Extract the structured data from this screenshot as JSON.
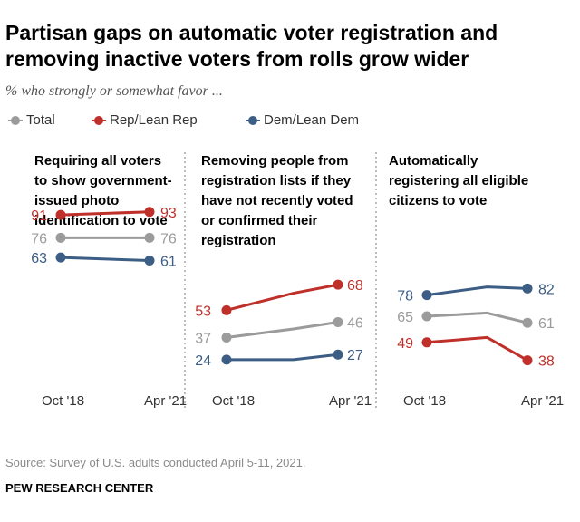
{
  "header": {
    "title": "Partisan gaps on automatic voter registration and removing inactive voters from rolls grow wider",
    "subtitle": "% who strongly or somewhat favor ..."
  },
  "legend": [
    {
      "label": "Total",
      "color": "#9b9b9b"
    },
    {
      "label": "Rep/Lean Rep",
      "color": "#c0302b"
    },
    {
      "label": "Dem/Lean Dem",
      "color": "#3c5d84"
    }
  ],
  "colors": {
    "total": "#9b9b9b",
    "rep": "#c0302b",
    "dem": "#3c5d84",
    "divider": "#7a7a7a",
    "axis_label": "#333333"
  },
  "chart_data": [
    {
      "type": "line",
      "title": "Requiring all voters to show government-issued photo identification to vote",
      "title_lines": [
        "Requiring all voters",
        "to show government-",
        "issued photo",
        "identification to vote"
      ],
      "x": [
        "Oct '18",
        "Apr '21"
      ],
      "ylim": [
        0,
        100
      ],
      "series": [
        {
          "name": "Rep/Lean Rep",
          "key": "rep",
          "values": [
            91,
            93
          ],
          "labels": [
            "91",
            "93"
          ],
          "mid": null
        },
        {
          "name": "Total",
          "key": "total",
          "values": [
            76,
            76
          ],
          "labels": [
            "76",
            "76"
          ],
          "mid": null
        },
        {
          "name": "Dem/Lean Dem",
          "key": "dem",
          "values": [
            63,
            61
          ],
          "labels": [
            "63",
            "61"
          ],
          "mid": null
        }
      ]
    },
    {
      "type": "line",
      "title": "Removing people from registration lists if they have not recently voted or confirmed their registration",
      "title_lines": [
        "Removing people from",
        "registration lists if they",
        "have not recently voted",
        "or confirmed their",
        "registration"
      ],
      "x": [
        "Oct '18",
        "Apr '21"
      ],
      "ylim": [
        0,
        100
      ],
      "series": [
        {
          "name": "Rep/Lean Rep",
          "key": "rep",
          "values": [
            53,
            68
          ],
          "labels": [
            "53",
            "68"
          ],
          "mid": 63
        },
        {
          "name": "Total",
          "key": "total",
          "values": [
            37,
            46
          ],
          "labels": [
            "37",
            "46"
          ],
          "mid": 42
        },
        {
          "name": "Dem/Lean Dem",
          "key": "dem",
          "values": [
            24,
            27
          ],
          "labels": [
            "24",
            "27"
          ],
          "mid": 24
        }
      ]
    },
    {
      "type": "line",
      "title": "Automatically registering all eligible citizens to vote",
      "title_lines": [
        "Automatically",
        "registering all eligible",
        "citizens to vote"
      ],
      "x": [
        "Oct '18",
        "Apr '21"
      ],
      "ylim": [
        0,
        100
      ],
      "series": [
        {
          "name": "Dem/Lean Dem",
          "key": "dem",
          "values": [
            78,
            82
          ],
          "labels": [
            "78",
            "82"
          ],
          "mid": 83
        },
        {
          "name": "Total",
          "key": "total",
          "values": [
            65,
            61
          ],
          "labels": [
            "65",
            "61"
          ],
          "mid": 67
        },
        {
          "name": "Rep/Lean Rep",
          "key": "rep",
          "values": [
            49,
            38
          ],
          "labels": [
            "49",
            "38"
          ],
          "mid": 52
        }
      ]
    }
  ],
  "footer": {
    "source": "Source: Survey of U.S. adults conducted April 5-11, 2021.",
    "org": "PEW RESEARCH CENTER"
  }
}
